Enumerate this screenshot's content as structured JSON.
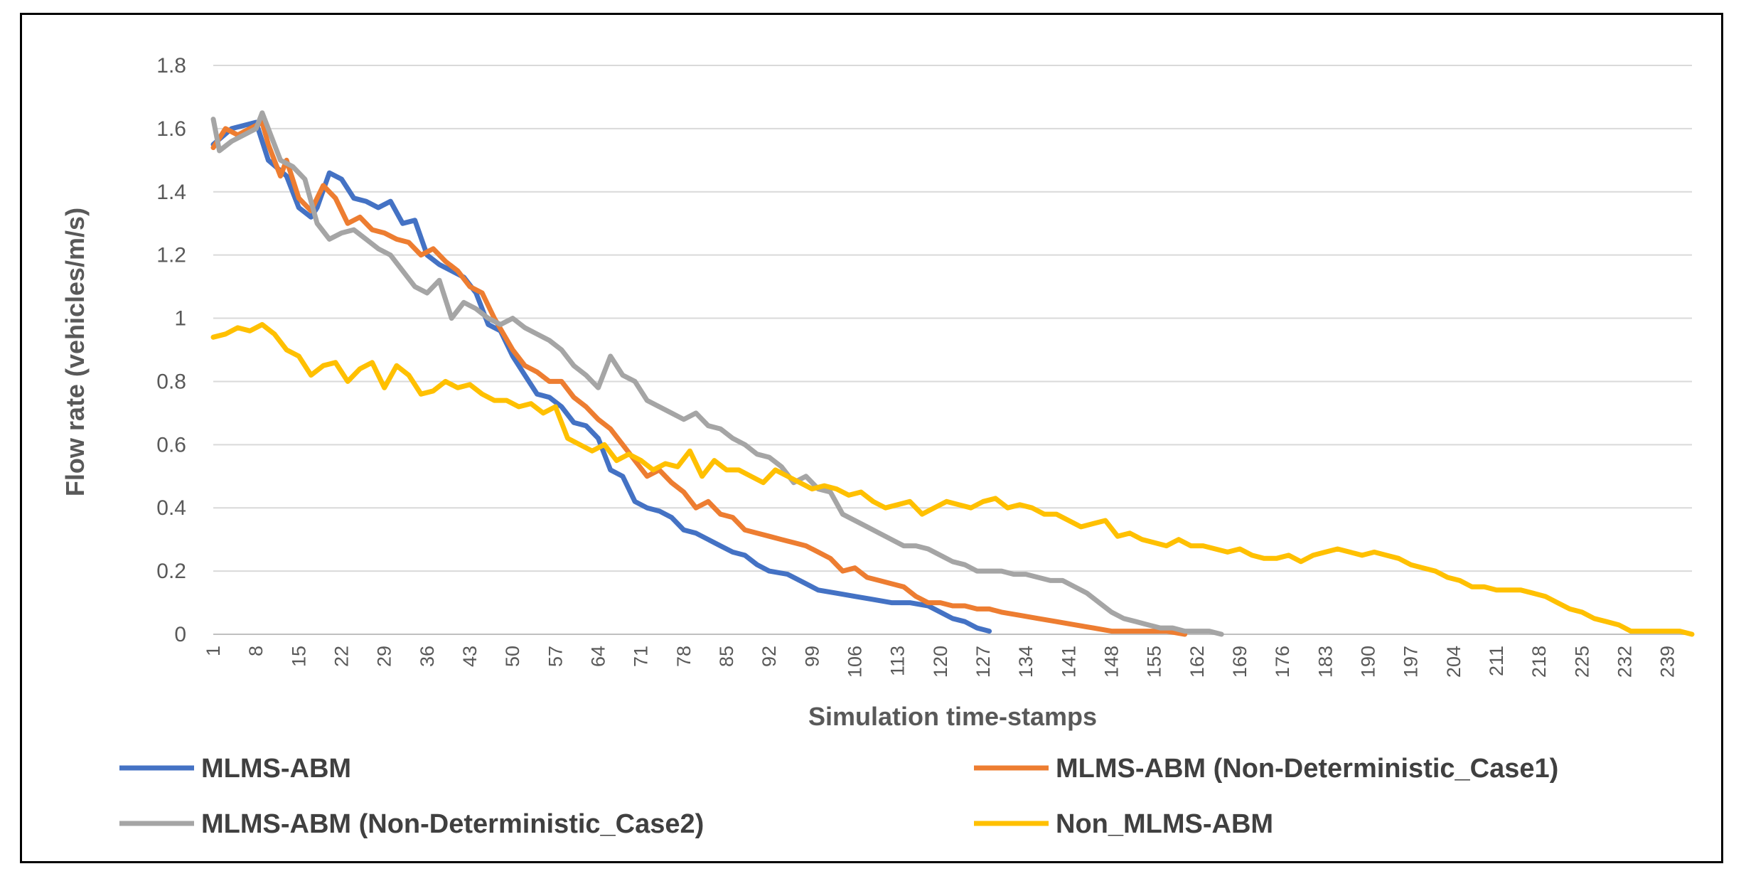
{
  "chart_data": {
    "type": "line",
    "xlabel": "Simulation time-stamps",
    "ylabel": "Flow rate (vehicles/m/s)",
    "ylim": [
      0,
      1.8
    ],
    "yticks": [
      "0",
      "0.2",
      "0.4",
      "0.6",
      "0.8",
      "1",
      "1.2",
      "1.4",
      "1.6",
      "1.8"
    ],
    "xlim": [
      1,
      243
    ],
    "xticks": [
      "1",
      "8",
      "15",
      "22",
      "29",
      "36",
      "43",
      "50",
      "57",
      "64",
      "71",
      "78",
      "85",
      "92",
      "99",
      "106",
      "113",
      "120",
      "127",
      "134",
      "141",
      "148",
      "155",
      "162",
      "169",
      "176",
      "183",
      "190",
      "197",
      "204",
      "211",
      "218",
      "225",
      "232",
      "239"
    ],
    "grid": "horizontal",
    "legend": "bottom",
    "series": [
      {
        "name": "MLMS-ABM",
        "color": "#4472C4",
        "x": [
          1,
          4,
          8,
          10,
          13,
          15,
          17,
          18,
          20,
          22,
          24,
          26,
          28,
          30,
          32,
          34,
          36,
          38,
          40,
          42,
          44,
          46,
          48,
          50,
          52,
          54,
          56,
          58,
          60,
          62,
          64,
          66,
          68,
          70,
          72,
          74,
          76,
          78,
          80,
          82,
          84,
          86,
          88,
          90,
          92,
          95,
          98,
          100,
          103,
          106,
          109,
          112,
          115,
          118,
          120,
          122,
          124,
          126,
          128
        ],
        "values": [
          1.55,
          1.6,
          1.62,
          1.5,
          1.45,
          1.35,
          1.32,
          1.35,
          1.46,
          1.44,
          1.38,
          1.37,
          1.35,
          1.37,
          1.3,
          1.31,
          1.2,
          1.17,
          1.15,
          1.13,
          1.08,
          0.98,
          0.96,
          0.88,
          0.82,
          0.76,
          0.75,
          0.72,
          0.67,
          0.66,
          0.62,
          0.52,
          0.5,
          0.42,
          0.4,
          0.39,
          0.37,
          0.33,
          0.32,
          0.3,
          0.28,
          0.26,
          0.25,
          0.22,
          0.2,
          0.19,
          0.16,
          0.14,
          0.13,
          0.12,
          0.11,
          0.1,
          0.1,
          0.09,
          0.07,
          0.05,
          0.04,
          0.02,
          0.01
        ]
      },
      {
        "name": "MLMS-ABM (Non-Deterministic_Case1)",
        "color": "#ED7D31",
        "x": [
          1,
          3,
          5,
          7,
          9,
          10,
          12,
          13,
          15,
          17,
          19,
          21,
          23,
          25,
          27,
          29,
          31,
          33,
          35,
          37,
          39,
          41,
          43,
          45,
          47,
          50,
          52,
          54,
          56,
          58,
          60,
          62,
          64,
          66,
          68,
          70,
          72,
          74,
          76,
          78,
          80,
          82,
          84,
          86,
          88,
          90,
          92,
          94,
          96,
          98,
          100,
          102,
          104,
          106,
          108,
          110,
          112,
          114,
          116,
          118,
          120,
          122,
          124,
          126,
          128,
          130,
          133,
          136,
          139,
          142,
          145,
          148,
          151,
          154,
          157,
          160
        ],
        "values": [
          1.54,
          1.6,
          1.58,
          1.6,
          1.62,
          1.55,
          1.45,
          1.5,
          1.38,
          1.34,
          1.42,
          1.38,
          1.3,
          1.32,
          1.28,
          1.27,
          1.25,
          1.24,
          1.2,
          1.22,
          1.18,
          1.15,
          1.1,
          1.08,
          1.0,
          0.9,
          0.85,
          0.83,
          0.8,
          0.8,
          0.75,
          0.72,
          0.68,
          0.65,
          0.6,
          0.55,
          0.5,
          0.52,
          0.48,
          0.45,
          0.4,
          0.42,
          0.38,
          0.37,
          0.33,
          0.32,
          0.31,
          0.3,
          0.29,
          0.28,
          0.26,
          0.24,
          0.2,
          0.21,
          0.18,
          0.17,
          0.16,
          0.15,
          0.12,
          0.1,
          0.1,
          0.09,
          0.09,
          0.08,
          0.08,
          0.07,
          0.06,
          0.05,
          0.04,
          0.03,
          0.02,
          0.01,
          0.01,
          0.01,
          0.01,
          0.0
        ]
      },
      {
        "name": "MLMS-ABM (Non-Deterministic_Case2)",
        "color": "#A5A5A5",
        "x": [
          1,
          2,
          4,
          6,
          8,
          9,
          10,
          12,
          14,
          16,
          18,
          20,
          22,
          24,
          26,
          28,
          30,
          32,
          34,
          36,
          38,
          40,
          42,
          44,
          46,
          48,
          50,
          52,
          54,
          56,
          58,
          60,
          62,
          64,
          66,
          68,
          70,
          72,
          74,
          76,
          78,
          80,
          82,
          84,
          86,
          88,
          90,
          92,
          94,
          96,
          98,
          100,
          102,
          104,
          106,
          108,
          110,
          112,
          114,
          116,
          118,
          120,
          122,
          124,
          126,
          128,
          130,
          132,
          134,
          136,
          138,
          140,
          142,
          144,
          146,
          148,
          150,
          152,
          154,
          156,
          158,
          160,
          162,
          164,
          166
        ],
        "values": [
          1.63,
          1.53,
          1.56,
          1.58,
          1.6,
          1.65,
          1.6,
          1.5,
          1.48,
          1.44,
          1.3,
          1.25,
          1.27,
          1.28,
          1.25,
          1.22,
          1.2,
          1.15,
          1.1,
          1.08,
          1.12,
          1.0,
          1.05,
          1.03,
          1.0,
          0.98,
          1.0,
          0.97,
          0.95,
          0.93,
          0.9,
          0.85,
          0.82,
          0.78,
          0.88,
          0.82,
          0.8,
          0.74,
          0.72,
          0.7,
          0.68,
          0.7,
          0.66,
          0.65,
          0.62,
          0.6,
          0.57,
          0.56,
          0.53,
          0.48,
          0.5,
          0.46,
          0.45,
          0.38,
          0.36,
          0.34,
          0.32,
          0.3,
          0.28,
          0.28,
          0.27,
          0.25,
          0.23,
          0.22,
          0.2,
          0.2,
          0.2,
          0.19,
          0.19,
          0.18,
          0.17,
          0.17,
          0.15,
          0.13,
          0.1,
          0.07,
          0.05,
          0.04,
          0.03,
          0.02,
          0.02,
          0.01,
          0.01,
          0.01,
          0.0
        ]
      },
      {
        "name": "Non_MLMS-ABM",
        "color": "#FFC000",
        "x": [
          1,
          3,
          5,
          7,
          9,
          11,
          13,
          15,
          17,
          19,
          21,
          23,
          25,
          27,
          29,
          31,
          33,
          35,
          37,
          39,
          41,
          43,
          45,
          47,
          49,
          51,
          53,
          55,
          57,
          59,
          61,
          63,
          65,
          67,
          69,
          71,
          73,
          75,
          77,
          79,
          81,
          83,
          85,
          87,
          89,
          91,
          93,
          95,
          97,
          99,
          101,
          103,
          105,
          107,
          109,
          111,
          113,
          115,
          117,
          119,
          121,
          123,
          125,
          127,
          129,
          131,
          133,
          135,
          137,
          139,
          141,
          143,
          145,
          147,
          149,
          151,
          153,
          155,
          157,
          159,
          161,
          163,
          165,
          167,
          169,
          171,
          173,
          175,
          177,
          179,
          181,
          183,
          185,
          187,
          189,
          191,
          193,
          195,
          197,
          199,
          201,
          203,
          205,
          207,
          209,
          211,
          213,
          215,
          217,
          219,
          221,
          223,
          225,
          227,
          229,
          231,
          233,
          235,
          237,
          239,
          241,
          243
        ],
        "values": [
          0.94,
          0.95,
          0.97,
          0.96,
          0.98,
          0.95,
          0.9,
          0.88,
          0.82,
          0.85,
          0.86,
          0.8,
          0.84,
          0.86,
          0.78,
          0.85,
          0.82,
          0.76,
          0.77,
          0.8,
          0.78,
          0.79,
          0.76,
          0.74,
          0.74,
          0.72,
          0.73,
          0.7,
          0.72,
          0.62,
          0.6,
          0.58,
          0.6,
          0.55,
          0.57,
          0.55,
          0.52,
          0.54,
          0.53,
          0.58,
          0.5,
          0.55,
          0.52,
          0.52,
          0.5,
          0.48,
          0.52,
          0.5,
          0.48,
          0.46,
          0.47,
          0.46,
          0.44,
          0.45,
          0.42,
          0.4,
          0.41,
          0.42,
          0.38,
          0.4,
          0.42,
          0.41,
          0.4,
          0.42,
          0.43,
          0.4,
          0.41,
          0.4,
          0.38,
          0.38,
          0.36,
          0.34,
          0.35,
          0.36,
          0.31,
          0.32,
          0.3,
          0.29,
          0.28,
          0.3,
          0.28,
          0.28,
          0.27,
          0.26,
          0.27,
          0.25,
          0.24,
          0.24,
          0.25,
          0.23,
          0.25,
          0.26,
          0.27,
          0.26,
          0.25,
          0.26,
          0.25,
          0.24,
          0.22,
          0.21,
          0.2,
          0.18,
          0.17,
          0.15,
          0.15,
          0.14,
          0.14,
          0.14,
          0.13,
          0.12,
          0.1,
          0.08,
          0.07,
          0.05,
          0.04,
          0.03,
          0.01,
          0.01,
          0.01,
          0.01,
          0.01,
          0.0
        ]
      }
    ]
  }
}
